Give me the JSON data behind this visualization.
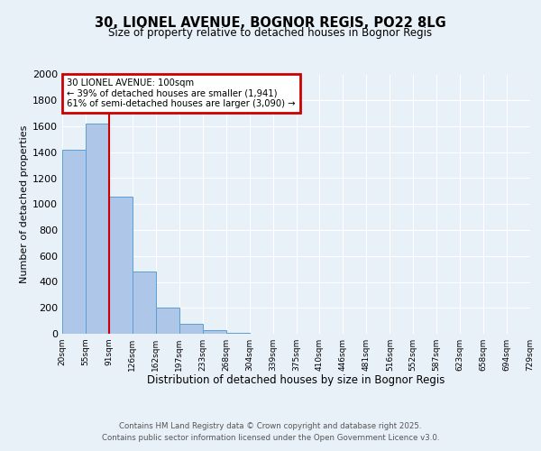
{
  "title1": "30, LIONEL AVENUE, BOGNOR REGIS, PO22 8LG",
  "title2": "Size of property relative to detached houses in Bognor Regis",
  "xlabel": "Distribution of detached houses by size in Bognor Regis",
  "ylabel": "Number of detached properties",
  "bar_values": [
    1420,
    1620,
    1060,
    480,
    205,
    75,
    30,
    5,
    0,
    0,
    0,
    0,
    0,
    0,
    0,
    0,
    0,
    0,
    0,
    0
  ],
  "categories": [
    "20sqm",
    "55sqm",
    "91sqm",
    "126sqm",
    "162sqm",
    "197sqm",
    "233sqm",
    "268sqm",
    "304sqm",
    "339sqm",
    "375sqm",
    "410sqm",
    "446sqm",
    "481sqm",
    "516sqm",
    "552sqm",
    "587sqm",
    "623sqm",
    "658sqm",
    "694sqm",
    "729sqm"
  ],
  "bar_color": "#aec6e8",
  "bar_edge_color": "#5a9fd4",
  "ylim": [
    0,
    2000
  ],
  "yticks": [
    0,
    200,
    400,
    600,
    800,
    1000,
    1200,
    1400,
    1600,
    1800,
    2000
  ],
  "property_bin_index": 2,
  "annotation_title": "30 LIONEL AVENUE: 100sqm",
  "annotation_line1": "← 39% of detached houses are smaller (1,941)",
  "annotation_line2": "61% of semi-detached houses are larger (3,090) →",
  "vline_color": "#cc0000",
  "annotation_box_color": "#cc0000",
  "footer_line1": "Contains HM Land Registry data © Crown copyright and database right 2025.",
  "footer_line2": "Contains public sector information licensed under the Open Government Licence v3.0.",
  "bg_color": "#e8f0f8",
  "plot_bg_color": "#e8f0f8"
}
